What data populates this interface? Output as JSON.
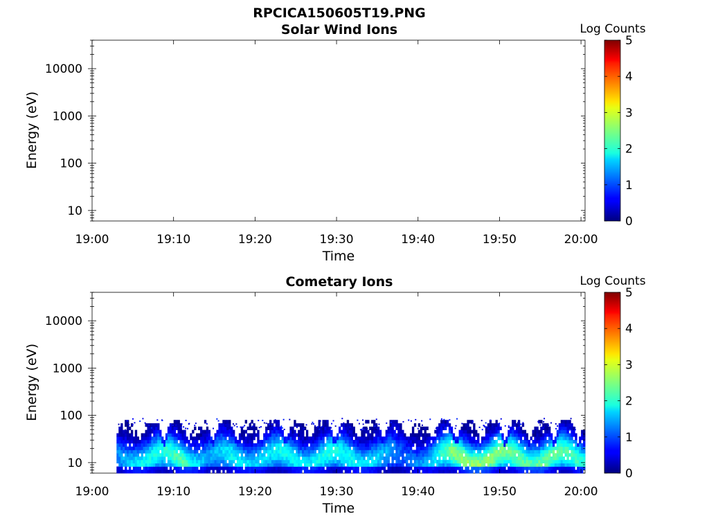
{
  "figure_title": "RPCICA150605T19.PNG",
  "chart_data": [
    {
      "type": "heatmap",
      "title": "Solar Wind Ions",
      "xlabel": "Time",
      "ylabel": "Energy (eV)",
      "x_tick_labels": [
        "19:00",
        "19:10",
        "19:20",
        "19:30",
        "19:40",
        "19:50",
        "20:00"
      ],
      "x_ticks_minutes": [
        0,
        10,
        20,
        30,
        40,
        50,
        60
      ],
      "xlim_minutes": [
        0,
        60.5
      ],
      "y_scale": "log",
      "y_tick_labels": [
        "10",
        "100",
        "1000",
        "10000"
      ],
      "y_ticks": [
        10,
        100,
        1000,
        10000
      ],
      "ylim": [
        6,
        40000
      ],
      "colorbar": {
        "label": "Log Counts",
        "min": 0,
        "max": 5,
        "tick_labels": [
          "0",
          "1",
          "2",
          "3",
          "4",
          "5"
        ],
        "colormap": "jet"
      },
      "data": []
    },
    {
      "type": "heatmap",
      "title": "Cometary Ions",
      "xlabel": "Time",
      "ylabel": "Energy (eV)",
      "x_tick_labels": [
        "19:00",
        "19:10",
        "19:20",
        "19:30",
        "19:40",
        "19:50",
        "20:00"
      ],
      "x_ticks_minutes": [
        0,
        10,
        20,
        30,
        40,
        50,
        60
      ],
      "xlim_minutes": [
        0,
        60.5
      ],
      "y_scale": "log",
      "y_tick_labels": [
        "10",
        "100",
        "1000",
        "10000"
      ],
      "y_ticks": [
        10,
        100,
        1000,
        10000
      ],
      "ylim": [
        6,
        40000
      ],
      "colorbar": {
        "label": "Log Counts",
        "min": 0,
        "max": 5,
        "tick_labels": [
          "0",
          "1",
          "2",
          "3",
          "4",
          "5"
        ],
        "colormap": "jet"
      },
      "data_time_range_minutes": [
        3,
        60.5
      ],
      "energy_range_ev": [
        6,
        80
      ],
      "peak_log_counts_profile": {
        "time_minutes": [
          3,
          5,
          8,
          11,
          14,
          17,
          20,
          23,
          26,
          29,
          32,
          35,
          38,
          41,
          44,
          47,
          50,
          53,
          56,
          59,
          60.5
        ],
        "peak_log_counts": [
          1.3,
          1.8,
          2.0,
          2.3,
          1.4,
          1.9,
          1.7,
          1.9,
          1.8,
          2.0,
          1.9,
          1.7,
          1.1,
          1.5,
          2.5,
          2.6,
          2.5,
          2.3,
          2.4,
          2.2,
          2.0
        ]
      }
    }
  ]
}
